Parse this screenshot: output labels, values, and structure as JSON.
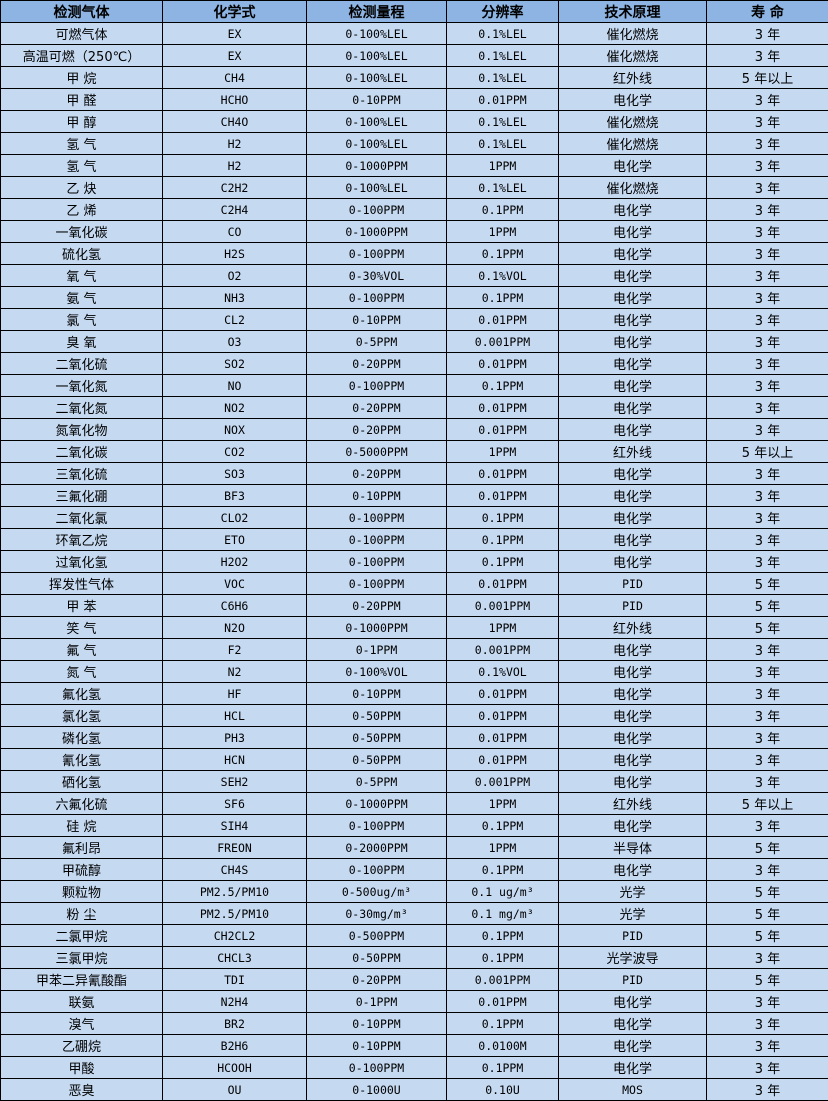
{
  "colors": {
    "header_bg": "#8db4e2",
    "cell_bg": "#c5d9f1",
    "border": "#000000"
  },
  "headers": [
    "检测气体",
    "化学式",
    "检测量程",
    "分辨率",
    "技术原理",
    "寿 命"
  ],
  "rows": [
    [
      "可燃气体",
      "EX",
      "0-100%LEL",
      "0.1%LEL",
      "催化燃烧",
      "3 年"
    ],
    [
      "高温可燃（250℃）",
      "EX",
      "0-100%LEL",
      "0.1%LEL",
      "催化燃烧",
      "3 年"
    ],
    [
      "甲 烷",
      "CH4",
      "0-100%LEL",
      "0.1%LEL",
      "红外线",
      "5 年以上"
    ],
    [
      "甲 醛",
      "HCHO",
      "0-10PPM",
      "0.01PPM",
      "电化学",
      "3 年"
    ],
    [
      "甲 醇",
      "CH4O",
      "0-100%LEL",
      "0.1%LEL",
      "催化燃烧",
      "3 年"
    ],
    [
      "氢 气",
      "H2",
      "0-100%LEL",
      "0.1%LEL",
      "催化燃烧",
      "3 年"
    ],
    [
      "氢 气",
      "H2",
      "0-1000PPM",
      "1PPM",
      "电化学",
      "3 年"
    ],
    [
      "乙 炔",
      "C2H2",
      "0-100%LEL",
      "0.1%LEL",
      "催化燃烧",
      "3 年"
    ],
    [
      "乙 烯",
      "C2H4",
      "0-100PPM",
      "0.1PPM",
      "电化学",
      "3 年"
    ],
    [
      "一氧化碳",
      "CO",
      "0-1000PPM",
      "1PPM",
      "电化学",
      "3 年"
    ],
    [
      "硫化氢",
      "H2S",
      "0-100PPM",
      "0.1PPM",
      "电化学",
      "3 年"
    ],
    [
      "氧 气",
      "O2",
      "0-30%VOL",
      "0.1%VOL",
      "电化学",
      "3 年"
    ],
    [
      "氨 气",
      "NH3",
      "0-100PPM",
      "0.1PPM",
      "电化学",
      "3 年"
    ],
    [
      "氯 气",
      "CL2",
      "0-10PPM",
      "0.01PPM",
      "电化学",
      "3 年"
    ],
    [
      "臭 氧",
      "O3",
      "0-5PPM",
      "0.001PPM",
      "电化学",
      "3 年"
    ],
    [
      "二氧化硫",
      "SO2",
      "0-20PPM",
      "0.01PPM",
      "电化学",
      "3 年"
    ],
    [
      "一氧化氮",
      "NO",
      "0-100PPM",
      "0.1PPM",
      "电化学",
      "3 年"
    ],
    [
      "二氧化氮",
      "NO2",
      "0-20PPM",
      "0.01PPM",
      "电化学",
      "3 年"
    ],
    [
      "氮氧化物",
      "NOX",
      "0-20PPM",
      "0.01PPM",
      "电化学",
      "3 年"
    ],
    [
      "二氧化碳",
      "CO2",
      "0-5000PPM",
      "1PPM",
      "红外线",
      "5 年以上"
    ],
    [
      "三氧化硫",
      "SO3",
      "0-20PPM",
      "0.01PPM",
      "电化学",
      "3 年"
    ],
    [
      "三氟化硼",
      "BF3",
      "0-10PPM",
      "0.01PPM",
      "电化学",
      "3 年"
    ],
    [
      "二氧化氯",
      "CLO2",
      "0-100PPM",
      "0.1PPM",
      "电化学",
      "3 年"
    ],
    [
      "环氧乙烷",
      "ETO",
      "0-100PPM",
      "0.1PPM",
      "电化学",
      "3 年"
    ],
    [
      "过氧化氢",
      "H2O2",
      "0-100PPM",
      "0.1PPM",
      "电化学",
      "3 年"
    ],
    [
      "挥发性气体",
      "VOC",
      "0-100PPM",
      "0.01PPM",
      "PID",
      "5 年"
    ],
    [
      "甲 苯",
      "C6H6",
      "0-20PPM",
      "0.001PPM",
      "PID",
      "5 年"
    ],
    [
      "笑 气",
      "N2O",
      "0-1000PPM",
      "1PPM",
      "红外线",
      "5 年"
    ],
    [
      "氟 气",
      "F2",
      "0-1PPM",
      "0.001PPM",
      "电化学",
      "3 年"
    ],
    [
      "氮 气",
      "N2",
      "0-100%VOL",
      "0.1%VOL",
      "电化学",
      "3 年"
    ],
    [
      "氟化氢",
      "HF",
      "0-10PPM",
      "0.01PPM",
      "电化学",
      "3 年"
    ],
    [
      "氯化氢",
      "HCL",
      "0-50PPM",
      "0.01PPM",
      "电化学",
      "3 年"
    ],
    [
      "磷化氢",
      "PH3",
      "0-50PPM",
      "0.01PPM",
      "电化学",
      "3 年"
    ],
    [
      "氰化氢",
      "HCN",
      "0-50PPM",
      "0.01PPM",
      "电化学",
      "3 年"
    ],
    [
      "硒化氢",
      "SEH2",
      "0-5PPM",
      "0.001PPM",
      "电化学",
      "3 年"
    ],
    [
      "六氟化硫",
      "SF6",
      "0-1000PPM",
      "1PPM",
      "红外线",
      "5 年以上"
    ],
    [
      "硅 烷",
      "SIH4",
      "0-100PPM",
      "0.1PPM",
      "电化学",
      "3 年"
    ],
    [
      "氟利昂",
      "FREON",
      "0-2000PPM",
      "1PPM",
      "半导体",
      "5 年"
    ],
    [
      "甲硫醇",
      "CH4S",
      "0-100PPM",
      "0.1PPM",
      "电化学",
      "3 年"
    ],
    [
      "颗粒物",
      "PM2.5/PM10",
      "0-500ug/m³",
      "0.1 ug/m³",
      "光学",
      "5 年"
    ],
    [
      "粉 尘",
      "PM2.5/PM10",
      "0-30mg/m³",
      "0.1 mg/m³",
      "光学",
      "5 年"
    ],
    [
      "二氯甲烷",
      "CH2CL2",
      "0-500PPM",
      "0.1PPM",
      "PID",
      "5 年"
    ],
    [
      "三氯甲烷",
      "CHCL3",
      "0-50PPM",
      "0.1PPM",
      "光学波导",
      "3 年"
    ],
    [
      "甲苯二异氰酸酯",
      "TDI",
      "0-20PPM",
      "0.001PPM",
      "PID",
      "5 年"
    ],
    [
      "联氨",
      "N2H4",
      "0-1PPM",
      "0.01PPM",
      "电化学",
      "3 年"
    ],
    [
      "溴气",
      "BR2",
      "0-10PPM",
      "0.1PPM",
      "电化学",
      "3 年"
    ],
    [
      "乙硼烷",
      "B2H6",
      "0-10PPM",
      "0.0100M",
      "电化学",
      "3 年"
    ],
    [
      "甲酸",
      "HCOOH",
      "0-100PPM",
      "0.1PPM",
      "电化学",
      "3 年"
    ],
    [
      "恶臭",
      "OU",
      "0-1000U",
      "0.10U",
      "MOS",
      "3 年"
    ]
  ]
}
